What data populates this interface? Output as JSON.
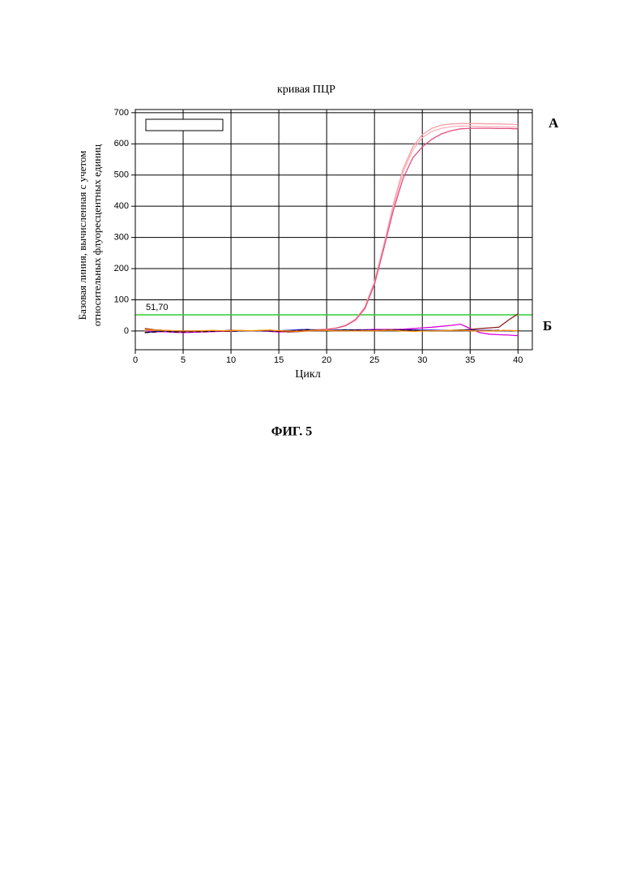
{
  "chart_data": {
    "type": "line",
    "title": "кривая ПЦР",
    "y_label": [
      "Базовая линия, вычисленная с учетом",
      "относительных флуоресцентных единиц"
    ],
    "x_label": "Цикл",
    "figure_caption": "ФИГ. 5",
    "annotations": [
      "А",
      "Б"
    ],
    "threshold": 51.7,
    "threshold_label": "51,70",
    "threshold_color": "#33cc33",
    "xlim": [
      0,
      41.5
    ],
    "ylim": [
      -60,
      710
    ],
    "xticks": [
      0,
      5,
      10,
      15,
      20,
      25,
      30,
      35,
      40
    ],
    "yticks": [
      0,
      100,
      200,
      300,
      400,
      500,
      600,
      700
    ],
    "grid": true,
    "x": [
      1,
      2,
      3,
      4,
      5,
      6,
      7,
      8,
      9,
      10,
      11,
      12,
      13,
      14,
      15,
      16,
      17,
      18,
      19,
      20,
      21,
      22,
      23,
      24,
      25,
      26,
      27,
      28,
      29,
      30,
      31,
      32,
      33,
      34,
      35,
      36,
      37,
      38,
      39,
      40
    ],
    "series": [
      {
        "color": "#f4a0a8",
        "values": [
          2,
          1,
          0,
          1,
          0,
          0,
          1,
          0,
          0,
          1,
          1,
          0,
          1,
          0,
          1,
          2,
          2,
          3,
          4,
          6,
          10,
          19,
          38,
          78,
          158,
          280,
          410,
          520,
          590,
          630,
          650,
          660,
          664,
          665,
          665,
          665,
          664,
          664,
          663,
          662
        ]
      },
      {
        "color": "#ffb0b8",
        "values": [
          1,
          0,
          1,
          0,
          0,
          1,
          0,
          1,
          0,
          0,
          1,
          1,
          0,
          1,
          1,
          1,
          2,
          3,
          4,
          6,
          10,
          18,
          36,
          74,
          150,
          270,
          400,
          510,
          580,
          620,
          640,
          650,
          655,
          657,
          657,
          656,
          655,
          655,
          654,
          654
        ]
      },
      {
        "color": "#e05080",
        "values": [
          0,
          1,
          0,
          0,
          1,
          0,
          0,
          1,
          1,
          0,
          0,
          1,
          1,
          0,
          1,
          2,
          2,
          3,
          4,
          5,
          9,
          17,
          35,
          72,
          150,
          268,
          390,
          490,
          555,
          590,
          615,
          632,
          642,
          648,
          650,
          650,
          650,
          649,
          649,
          648
        ]
      },
      {
        "color": "#dd00dd",
        "values": [
          -5,
          -3,
          -2,
          -4,
          -5,
          -4,
          -3,
          -2,
          -1,
          -1,
          0,
          1,
          0,
          -1,
          -3,
          -2,
          0,
          1,
          2,
          2,
          3,
          3,
          4,
          4,
          5,
          5,
          5,
          6,
          8,
          10,
          12,
          15,
          18,
          22,
          8,
          -5,
          -10,
          -12,
          -13,
          -15
        ]
      },
      {
        "color": "#8b1a1a",
        "values": [
          8,
          4,
          2,
          1,
          0,
          -1,
          0,
          1,
          1,
          2,
          1,
          0,
          1,
          2,
          0,
          -3,
          -2,
          0,
          1,
          2,
          2,
          3,
          2,
          3,
          2,
          2,
          3,
          2,
          1,
          0,
          0,
          1,
          2,
          3,
          5,
          8,
          10,
          12,
          35,
          55
        ]
      },
      {
        "color": "#2020cc",
        "values": [
          -4,
          -2,
          0,
          -2,
          -1,
          -1,
          0,
          0,
          1,
          0,
          0,
          1,
          0,
          0,
          0,
          2,
          4,
          5,
          3,
          2,
          3,
          4,
          3,
          3,
          2,
          3,
          3,
          3,
          4,
          3,
          3,
          2,
          2,
          3,
          3,
          2,
          2,
          1,
          0,
          0
        ]
      },
      {
        "color": "#000000",
        "dash": true,
        "values": [
          -5,
          -3,
          0,
          -3,
          -3,
          -2,
          -2,
          -1,
          0,
          -1,
          0,
          1,
          1,
          0,
          -1,
          0,
          1,
          4,
          2,
          1,
          2,
          3,
          3,
          2,
          2,
          3,
          4,
          3,
          2,
          1,
          0,
          1,
          2,
          3,
          1,
          0,
          1,
          2,
          1,
          0
        ]
      },
      {
        "color": "#ff8c00",
        "values": [
          5,
          3,
          2,
          1,
          0,
          0,
          1,
          2,
          1,
          1,
          2,
          1,
          2,
          3,
          1,
          0,
          -1,
          1,
          2,
          2,
          1,
          1,
          0,
          1,
          1,
          2,
          2,
          0,
          -1,
          0,
          1,
          1,
          2,
          2,
          1,
          0,
          0,
          1,
          2,
          0
        ]
      }
    ]
  }
}
